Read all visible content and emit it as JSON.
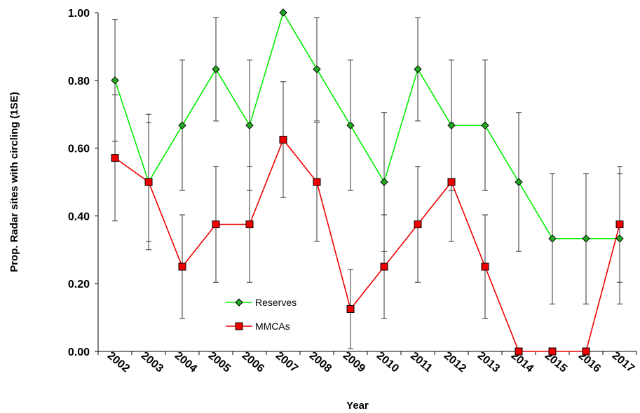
{
  "chart_data": {
    "type": "line",
    "xlabel": "Year",
    "ylabel": "Prop. Radar sites with circling (1SE)",
    "ylim": [
      0,
      1
    ],
    "yticks": [
      "0.00",
      "0.20",
      "0.40",
      "0.60",
      "0.80",
      "1.00"
    ],
    "categories": [
      "2002",
      "2003",
      "2004",
      "2005",
      "2006",
      "2007",
      "2008",
      "2009",
      "2010",
      "2011",
      "2012",
      "2013",
      "2014",
      "2015",
      "2016",
      "2017"
    ],
    "grid": false,
    "legend_position": "bottom-left",
    "series": [
      {
        "name": "Reserves",
        "color": "#00ee00",
        "marker": "diamond",
        "marker_fill": "#22aa22",
        "values": [
          0.8,
          0.5,
          0.667,
          0.833,
          0.667,
          1.0,
          0.833,
          0.667,
          0.5,
          0.833,
          0.667,
          0.667,
          0.5,
          0.333,
          0.333,
          0.333
        ],
        "error_low": [
          0.62,
          0.3,
          0.475,
          0.68,
          0.475,
          1.0,
          0.68,
          0.475,
          0.295,
          0.68,
          0.475,
          0.475,
          0.295,
          0.14,
          0.14,
          0.14
        ],
        "error_high": [
          0.98,
          0.7,
          0.86,
          0.985,
          0.86,
          1.0,
          0.985,
          0.86,
          0.705,
          0.985,
          0.86,
          0.86,
          0.705,
          0.525,
          0.525,
          0.525
        ]
      },
      {
        "name": "MMCAs",
        "color": "#ee0000",
        "marker": "square",
        "marker_fill": "#ee0000",
        "values": [
          0.571,
          0.5,
          0.25,
          0.375,
          0.375,
          0.625,
          0.5,
          0.125,
          0.25,
          0.375,
          0.5,
          0.25,
          0.0,
          0.0,
          0.0,
          0.375
        ],
        "error_low": [
          0.385,
          0.325,
          0.097,
          0.204,
          0.204,
          0.454,
          0.325,
          0.008,
          0.097,
          0.204,
          0.325,
          0.097,
          0.0,
          0.0,
          0.0,
          0.204
        ],
        "error_high": [
          0.757,
          0.675,
          0.403,
          0.546,
          0.546,
          0.796,
          0.675,
          0.242,
          0.403,
          0.546,
          0.675,
          0.403,
          0.0,
          0.0,
          0.0,
          0.546
        ]
      }
    ]
  }
}
